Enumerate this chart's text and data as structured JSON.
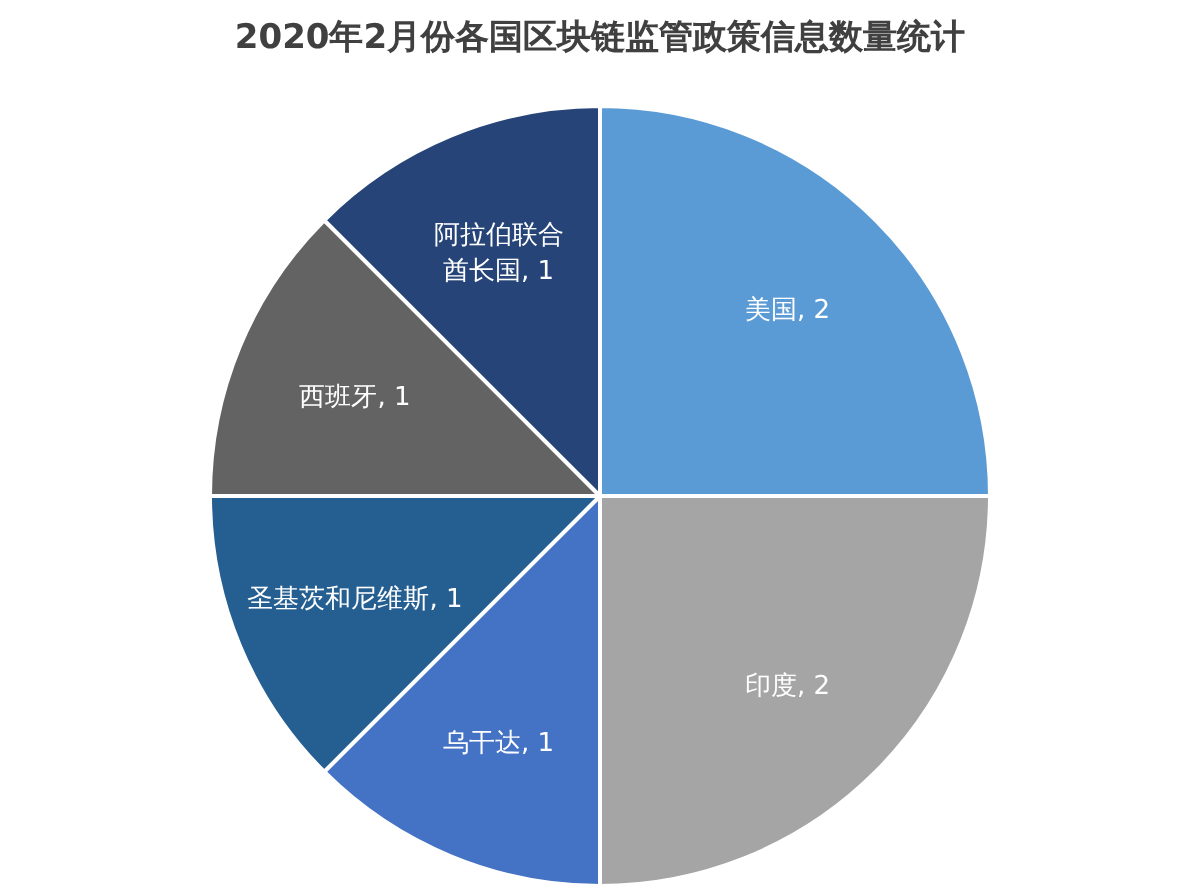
{
  "chart_data": {
    "type": "pie",
    "title": "2020年2月份各国区块链监管政策信息数量统计",
    "categories": [
      "美国",
      "印度",
      "乌干达",
      "圣基茨和尼维斯",
      "西班牙",
      "阿拉伯联合酋长国"
    ],
    "values": [
      2,
      2,
      1,
      1,
      1,
      1
    ],
    "value_labels": [
      ", 2",
      ", 2",
      ", 1",
      ", 1",
      ", 1",
      ", 1"
    ],
    "colors": [
      "#5b9bd5",
      "#a5a5a5",
      "#4472c4",
      "#255e91",
      "#636363",
      "#264478"
    ]
  }
}
